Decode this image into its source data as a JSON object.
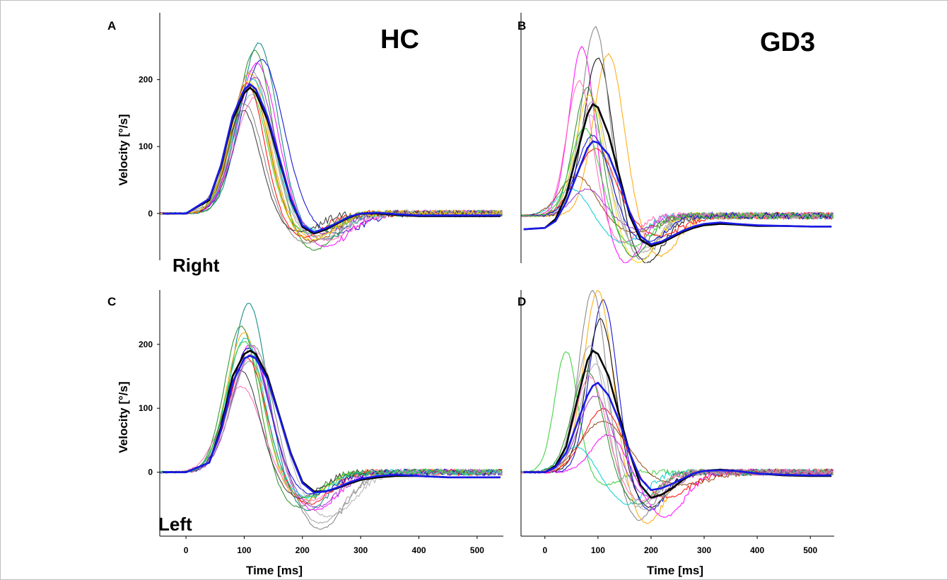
{
  "figure": {
    "panels": [
      {
        "letter": "A",
        "group_label": "HC",
        "side_label": "Right",
        "ylabel": "Velocity  [°/s]",
        "xlabel": ""
      },
      {
        "letter": "B",
        "group_label": "GD3",
        "side_label": "",
        "ylabel": "",
        "xlabel": ""
      },
      {
        "letter": "C",
        "group_label": "",
        "side_label": "Left",
        "ylabel": "Velocity  [°/s]",
        "xlabel": "Time [ms]"
      },
      {
        "letter": "D",
        "group_label": "",
        "side_label": "",
        "ylabel": "",
        "xlabel": "Time [ms]"
      }
    ]
  },
  "chart_data": [
    {
      "panel": "A",
      "type": "line",
      "title": "HC",
      "xlabel": "",
      "ylabel": "Velocity  [°/s]",
      "xlim": [
        -45,
        545
      ],
      "ylim": [
        -70,
        300
      ],
      "xticks": [],
      "yticks": [
        0,
        100,
        200
      ],
      "grid": false,
      "series": [
        {
          "role": "mean",
          "color": "#000000",
          "x": [
            -40,
            0,
            40,
            60,
            80,
            100,
            110,
            120,
            140,
            160,
            180,
            200,
            220,
            240,
            260,
            280,
            300,
            330,
            360,
            400,
            450,
            500,
            540
          ],
          "y": [
            0,
            0,
            20,
            70,
            140,
            180,
            188,
            180,
            140,
            80,
            20,
            -20,
            -30,
            -24,
            -15,
            -6,
            0,
            0,
            -2,
            -4,
            -4,
            -4,
            -4
          ]
        },
        {
          "role": "mean-blue",
          "color": "#1a1ae6",
          "x": [
            -40,
            0,
            40,
            60,
            80,
            100,
            110,
            120,
            140,
            160,
            180,
            200,
            220,
            240,
            260,
            280,
            300,
            330,
            360,
            400,
            450,
            500,
            540
          ],
          "y": [
            0,
            0,
            22,
            72,
            145,
            185,
            193,
            186,
            145,
            84,
            22,
            -18,
            -28,
            -22,
            -14,
            -5,
            0,
            1,
            -1,
            -3,
            -3,
            -3,
            -3
          ]
        }
      ],
      "individual_traces": [
        {
          "color": "#008080",
          "peak": 255,
          "peak_x": 125,
          "width": 45,
          "undershoot": -40
        },
        {
          "color": "#0000cd",
          "peak": 230,
          "peak_x": 130,
          "width": 52,
          "undershoot": -30
        },
        {
          "color": "#ff00ff",
          "peak": 225,
          "peak_x": 122,
          "width": 48,
          "undershoot": -50
        },
        {
          "color": "#228b22",
          "peak": 245,
          "peak_x": 118,
          "width": 42,
          "undershoot": -55
        },
        {
          "color": "#ffa500",
          "peak": 210,
          "peak_x": 110,
          "width": 44,
          "undershoot": -35
        },
        {
          "color": "#ff0000",
          "peak": 195,
          "peak_x": 105,
          "width": 40,
          "undershoot": -35
        },
        {
          "color": "#00ced1",
          "peak": 200,
          "peak_x": 115,
          "width": 46,
          "undershoot": -25
        },
        {
          "color": "#ff69b4",
          "peak": 175,
          "peak_x": 120,
          "width": 50,
          "undershoot": -40
        },
        {
          "color": "#808080",
          "peak": 165,
          "peak_x": 100,
          "width": 44,
          "undershoot": -45
        },
        {
          "color": "#a0a0a0",
          "peak": 215,
          "peak_x": 112,
          "width": 46,
          "undershoot": -35
        },
        {
          "color": "#32cd32",
          "peak": 188,
          "peak_x": 108,
          "width": 43,
          "undershoot": -30
        },
        {
          "color": "#333333",
          "peak": 155,
          "peak_x": 98,
          "width": 40,
          "undershoot": -28
        },
        {
          "color": "#9932cc",
          "peak": 205,
          "peak_x": 118,
          "width": 47,
          "undershoot": -30
        },
        {
          "color": "#8b4513",
          "peak": 192,
          "peak_x": 110,
          "width": 44,
          "undershoot": -42
        },
        {
          "color": "#b0b0b0",
          "peak": 180,
          "peak_x": 115,
          "width": 48,
          "undershoot": -38
        },
        {
          "color": "#ffd700",
          "peak": 198,
          "peak_x": 108,
          "width": 44,
          "undershoot": -40
        }
      ]
    },
    {
      "panel": "B",
      "type": "line",
      "title": "GD3",
      "xlabel": "",
      "ylabel": "",
      "xlim": [
        -45,
        545
      ],
      "ylim": [
        -70,
        300
      ],
      "xticks": [],
      "yticks": [],
      "grid": false,
      "series": [
        {
          "role": "mean",
          "color": "#000000",
          "x": [
            -40,
            0,
            20,
            40,
            60,
            80,
            90,
            100,
            120,
            140,
            160,
            180,
            200,
            220,
            240,
            260,
            280,
            300,
            330,
            360,
            400,
            450,
            500,
            540
          ],
          "y": [
            -20,
            -18,
            -5,
            30,
            90,
            150,
            165,
            160,
            120,
            60,
            0,
            -35,
            -45,
            -40,
            -32,
            -24,
            -18,
            -14,
            -12,
            -13,
            -15,
            -15,
            -16,
            -16
          ]
        },
        {
          "role": "mean-blue",
          "color": "#1a1ae6",
          "x": [
            -40,
            0,
            20,
            40,
            60,
            80,
            90,
            100,
            120,
            140,
            160,
            180,
            200,
            220,
            240,
            260,
            280,
            300,
            330,
            360,
            400,
            450,
            500,
            540
          ],
          "y": [
            -20,
            -18,
            -8,
            20,
            60,
            100,
            110,
            108,
            90,
            50,
            5,
            -30,
            -42,
            -38,
            -30,
            -22,
            -16,
            -12,
            -10,
            -12,
            -14,
            -15,
            -16,
            -16
          ]
        }
      ],
      "individual_traces": [
        {
          "color": "#ff00ff",
          "peak": 250,
          "peak_x": 70,
          "width": 34,
          "undershoot": -70
        },
        {
          "color": "#ffa500",
          "peak": 240,
          "peak_x": 120,
          "width": 40,
          "undershoot": -60
        },
        {
          "color": "#000000",
          "peak": 235,
          "peak_x": 100,
          "width": 38,
          "undershoot": -70
        },
        {
          "color": "#808080",
          "peak": 280,
          "peak_x": 95,
          "width": 36,
          "undershoot": -65
        },
        {
          "color": "#ffd700",
          "peak": 180,
          "peak_x": 85,
          "width": 38,
          "undershoot": -70
        },
        {
          "color": "#ff0000",
          "peak": 100,
          "peak_x": 95,
          "width": 50,
          "undershoot": -30
        },
        {
          "color": "#00ced1",
          "peak": 40,
          "peak_x": 50,
          "width": 40,
          "undershoot": -40
        },
        {
          "color": "#8b4513",
          "peak": 60,
          "peak_x": 60,
          "width": 45,
          "undershoot": -25
        },
        {
          "color": "#228b22",
          "peak": 190,
          "peak_x": 80,
          "width": 36,
          "undershoot": -60
        },
        {
          "color": "#9932cc",
          "peak": 40,
          "peak_x": 80,
          "width": 40,
          "undershoot": -20
        },
        {
          "color": "#a0a0a0",
          "peak": 170,
          "peak_x": 90,
          "width": 38,
          "undershoot": -55
        },
        {
          "color": "#b0b0b0",
          "peak": 150,
          "peak_x": 85,
          "width": 40,
          "undershoot": -50
        },
        {
          "color": "#ff69b4",
          "peak": 200,
          "peak_x": 65,
          "width": 34,
          "undershoot": -40
        },
        {
          "color": "#0000cd",
          "peak": 120,
          "peak_x": 90,
          "width": 42,
          "undershoot": -40
        },
        {
          "color": "#32cd32",
          "peak": 130,
          "peak_x": 75,
          "width": 38,
          "undershoot": -45
        }
      ]
    },
    {
      "panel": "C",
      "type": "line",
      "title": "",
      "xlabel": "Time [ms]",
      "ylabel": "Velocity  [°/s]",
      "xlim": [
        -45,
        545
      ],
      "ylim": [
        -100,
        285
      ],
      "xticks": [
        0,
        100,
        200,
        300,
        400,
        500
      ],
      "yticks": [
        0,
        100,
        200
      ],
      "grid": false,
      "series": [
        {
          "role": "mean",
          "color": "#000000",
          "x": [
            -40,
            0,
            40,
            60,
            80,
            100,
            110,
            120,
            140,
            160,
            180,
            200,
            220,
            240,
            260,
            280,
            300,
            330,
            360,
            400,
            450,
            500,
            540
          ],
          "y": [
            0,
            0,
            15,
            70,
            150,
            185,
            190,
            185,
            150,
            90,
            30,
            -15,
            -30,
            -30,
            -25,
            -18,
            -12,
            -8,
            -6,
            -6,
            -8,
            -8,
            -8
          ]
        },
        {
          "role": "mean-blue",
          "color": "#1a1ae6",
          "x": [
            -40,
            0,
            40,
            60,
            80,
            100,
            110,
            120,
            140,
            160,
            180,
            200,
            220,
            240,
            260,
            280,
            300,
            330,
            360,
            400,
            450,
            500,
            540
          ],
          "y": [
            0,
            0,
            15,
            65,
            140,
            178,
            182,
            178,
            145,
            88,
            28,
            -17,
            -32,
            -30,
            -24,
            -16,
            -10,
            -6,
            -4,
            -6,
            -8,
            -8,
            -8
          ]
        }
      ],
      "individual_traces": [
        {
          "color": "#008080",
          "peak": 265,
          "peak_x": 108,
          "width": 42,
          "undershoot": -60
        },
        {
          "color": "#228b22",
          "peak": 230,
          "peak_x": 95,
          "width": 40,
          "undershoot": -55
        },
        {
          "color": "#ff00ff",
          "peak": 200,
          "peak_x": 110,
          "width": 46,
          "undershoot": -60
        },
        {
          "color": "#ffa500",
          "peak": 220,
          "peak_x": 100,
          "width": 42,
          "undershoot": -45
        },
        {
          "color": "#ff0000",
          "peak": 180,
          "peak_x": 105,
          "width": 44,
          "undershoot": -50
        },
        {
          "color": "#ff69b4",
          "peak": 135,
          "peak_x": 95,
          "width": 48,
          "undershoot": -45
        },
        {
          "color": "#808080",
          "peak": 200,
          "peak_x": 115,
          "width": 48,
          "undershoot": -90
        },
        {
          "color": "#a0a0a0",
          "peak": 175,
          "peak_x": 110,
          "width": 50,
          "undershoot": -80
        },
        {
          "color": "#333333",
          "peak": 160,
          "peak_x": 95,
          "width": 42,
          "undershoot": -40
        },
        {
          "color": "#0000cd",
          "peak": 195,
          "peak_x": 108,
          "width": 46,
          "undershoot": -35
        },
        {
          "color": "#9932cc",
          "peak": 185,
          "peak_x": 112,
          "width": 46,
          "undershoot": -55
        },
        {
          "color": "#00ced1",
          "peak": 210,
          "peak_x": 102,
          "width": 44,
          "undershoot": -40
        },
        {
          "color": "#b0b0b0",
          "peak": 190,
          "peak_x": 118,
          "width": 52,
          "undershoot": -70
        },
        {
          "color": "#32cd32",
          "peak": 205,
          "peak_x": 100,
          "width": 43,
          "undershoot": -40
        }
      ]
    },
    {
      "panel": "D",
      "type": "line",
      "title": "",
      "xlabel": "Time [ms]",
      "ylabel": "",
      "xlim": [
        -45,
        545
      ],
      "ylim": [
        -100,
        285
      ],
      "xticks": [
        0,
        100,
        200,
        300,
        400,
        500
      ],
      "yticks": [],
      "grid": false,
      "series": [
        {
          "role": "mean",
          "color": "#000000",
          "x": [
            -40,
            0,
            20,
            40,
            60,
            80,
            90,
            100,
            120,
            140,
            160,
            180,
            200,
            220,
            240,
            260,
            280,
            300,
            330,
            360,
            400,
            450,
            500,
            540
          ],
          "y": [
            0,
            0,
            10,
            40,
            110,
            175,
            190,
            185,
            150,
            90,
            30,
            -20,
            -40,
            -35,
            -25,
            -12,
            -2,
            2,
            4,
            2,
            -2,
            -5,
            -6,
            -6
          ]
        },
        {
          "role": "mean-blue",
          "color": "#1a1ae6",
          "x": [
            -40,
            0,
            20,
            40,
            60,
            80,
            90,
            100,
            120,
            140,
            160,
            180,
            200,
            220,
            240,
            260,
            280,
            300,
            330,
            360,
            400,
            450,
            500,
            540
          ],
          "y": [
            0,
            0,
            8,
            30,
            75,
            120,
            135,
            140,
            120,
            80,
            30,
            -10,
            -28,
            -25,
            -18,
            -10,
            -2,
            2,
            3,
            2,
            -2,
            -4,
            -5,
            -5
          ]
        }
      ],
      "individual_traces": [
        {
          "color": "#32cd32",
          "peak": 190,
          "peak_x": 40,
          "width": 30,
          "undershoot": -20
        },
        {
          "color": "#0000cd",
          "peak": 270,
          "peak_x": 110,
          "width": 36,
          "undershoot": -60
        },
        {
          "color": "#808080",
          "peak": 285,
          "peak_x": 90,
          "width": 36,
          "undershoot": -75
        },
        {
          "color": "#ffa500",
          "peak": 285,
          "peak_x": 100,
          "width": 38,
          "undershoot": -80
        },
        {
          "color": "#000000",
          "peak": 240,
          "peak_x": 105,
          "width": 38,
          "undershoot": -55
        },
        {
          "color": "#ff00ff",
          "peak": 60,
          "peak_x": 120,
          "width": 44,
          "undershoot": -70
        },
        {
          "color": "#ff0000",
          "peak": 100,
          "peak_x": 110,
          "width": 50,
          "undershoot": -40
        },
        {
          "color": "#8b4513",
          "peak": 80,
          "peak_x": 110,
          "width": 60,
          "undershoot": -20
        },
        {
          "color": "#00ced1",
          "peak": 40,
          "peak_x": 60,
          "width": 40,
          "undershoot": -50
        },
        {
          "color": "#a0a0a0",
          "peak": 200,
          "peak_x": 85,
          "width": 38,
          "undershoot": -55
        },
        {
          "color": "#228b22",
          "peak": 160,
          "peak_x": 80,
          "width": 40,
          "undershoot": -50
        },
        {
          "color": "#9932cc",
          "peak": 120,
          "peak_x": 95,
          "width": 44,
          "undershoot": -40
        },
        {
          "color": "#b0b0b0",
          "peak": 170,
          "peak_x": 95,
          "width": 40,
          "undershoot": -60
        },
        {
          "color": "#ff69b4",
          "peak": 150,
          "peak_x": 85,
          "width": 40,
          "undershoot": -45
        }
      ]
    }
  ]
}
